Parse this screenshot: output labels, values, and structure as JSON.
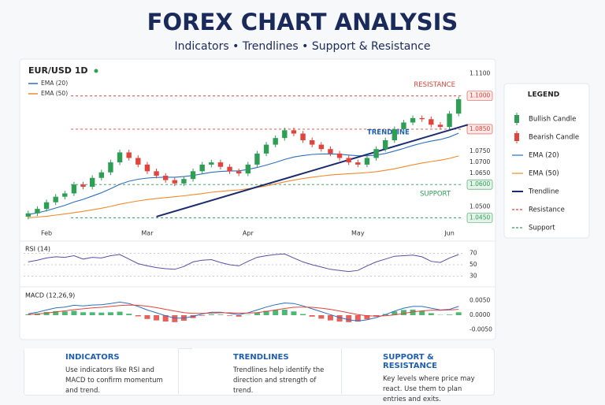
{
  "header": {
    "title": "FOREX CHART ANALYSIS",
    "subtitle": "Indicators • Trendlines • Support & Resistance"
  },
  "chart_data": [
    {
      "type": "candlestick",
      "title": "EUR/USD  1D",
      "candles": {
        "up_name": "Bullish Candle",
        "down_name": "Bearish Candle",
        "up_color": "#2e9e55",
        "down_color": "#e0443c",
        "open": [
          1.0455,
          1.047,
          1.049,
          1.052,
          1.0545,
          1.056,
          1.06,
          1.059,
          1.063,
          1.0655,
          1.07,
          1.0745,
          1.072,
          1.069,
          1.066,
          1.064,
          1.062,
          1.0605,
          1.0625,
          1.066,
          1.069,
          1.07,
          1.068,
          1.066,
          1.065,
          1.069,
          1.074,
          1.078,
          1.081,
          1.0845,
          1.083,
          1.08,
          1.078,
          1.076,
          1.074,
          1.072,
          1.07,
          1.069,
          1.072,
          1.076,
          1.08,
          1.085,
          1.088,
          1.09,
          1.0895,
          1.087,
          1.086,
          1.092
        ],
        "high": [
          1.0482,
          1.0502,
          1.0532,
          1.0557,
          1.0572,
          1.0612,
          1.0612,
          1.0642,
          1.0667,
          1.0712,
          1.0757,
          1.0757,
          1.0732,
          1.0702,
          1.0672,
          1.0652,
          1.0632,
          1.0637,
          1.0672,
          1.0702,
          1.0712,
          1.0712,
          1.0692,
          1.0672,
          1.0702,
          1.0752,
          1.0792,
          1.0822,
          1.0857,
          1.0857,
          1.0842,
          1.0812,
          1.0792,
          1.0772,
          1.0752,
          1.0732,
          1.0712,
          1.0732,
          1.0772,
          1.0812,
          1.0862,
          1.0892,
          1.0912,
          1.0912,
          1.0907,
          1.0882,
          1.0932,
          1.0997
        ],
        "low": [
          1.0443,
          1.0458,
          1.0478,
          1.0508,
          1.0533,
          1.0548,
          1.0578,
          1.0578,
          1.0618,
          1.0643,
          1.0688,
          1.0708,
          1.0678,
          1.0648,
          1.0628,
          1.0608,
          1.0593,
          1.0593,
          1.0613,
          1.0648,
          1.0678,
          1.0668,
          1.0648,
          1.0638,
          1.0638,
          1.0678,
          1.0728,
          1.0768,
          1.0798,
          1.0818,
          1.0788,
          1.0768,
          1.0748,
          1.0728,
          1.0708,
          1.0688,
          1.0678,
          1.0678,
          1.0708,
          1.0748,
          1.0788,
          1.0838,
          1.0868,
          1.0883,
          1.0858,
          1.0848,
          1.0848,
          1.0908
        ],
        "close": [
          1.047,
          1.049,
          1.052,
          1.0545,
          1.056,
          1.06,
          1.059,
          1.063,
          1.0655,
          1.07,
          1.0745,
          1.072,
          1.069,
          1.066,
          1.064,
          1.062,
          1.0605,
          1.0625,
          1.066,
          1.069,
          1.07,
          1.068,
          1.066,
          1.065,
          1.069,
          1.074,
          1.078,
          1.081,
          1.0845,
          1.083,
          1.08,
          1.078,
          1.076,
          1.074,
          1.072,
          1.07,
          1.069,
          1.072,
          1.076,
          1.08,
          1.085,
          1.088,
          1.09,
          1.0895,
          1.087,
          1.086,
          1.092,
          1.0985
        ]
      },
      "series": [
        {
          "name": "EMA (20)",
          "color": "#2c6fbb",
          "values": [
            1.0465,
            1.0472,
            1.0482,
            1.0494,
            1.0506,
            1.0521,
            1.0533,
            1.0548,
            1.0563,
            1.0581,
            1.0601,
            1.0615,
            1.0624,
            1.0629,
            1.0632,
            1.0633,
            1.0633,
            1.0636,
            1.0641,
            1.0648,
            1.0655,
            1.0659,
            1.0661,
            1.0662,
            1.0668,
            1.0677,
            1.0688,
            1.07,
            1.0713,
            1.0724,
            1.0731,
            1.0736,
            1.0738,
            1.0738,
            1.0737,
            1.0733,
            1.073,
            1.073,
            1.0733,
            1.074,
            1.0751,
            1.0763,
            1.0776,
            1.0787,
            1.0796,
            1.0803,
            1.0815,
            1.0832
          ]
        },
        {
          "name": "EMA (50)",
          "color": "#f08a2c",
          "values": [
            1.045,
            1.0453,
            1.0457,
            1.0462,
            1.0467,
            1.0473,
            1.0479,
            1.0486,
            1.0493,
            1.0501,
            1.0511,
            1.0519,
            1.0526,
            1.0532,
            1.0537,
            1.0541,
            1.0545,
            1.0549,
            1.0554,
            1.0559,
            1.0565,
            1.0569,
            1.0573,
            1.0576,
            1.0581,
            1.0587,
            1.0594,
            1.0603,
            1.0612,
            1.062,
            1.0627,
            1.0633,
            1.0638,
            1.0643,
            1.0646,
            1.0649,
            1.0651,
            1.0654,
            1.0658,
            1.0664,
            1.0671,
            1.068,
            1.0689,
            1.0697,
            1.0704,
            1.071,
            1.0718,
            1.0729
          ]
        }
      ],
      "trendline": {
        "name": "Trendline",
        "label": "TRENDLINE",
        "color": "#1a2a6e",
        "x": [
          14,
          48
        ],
        "y": [
          1.0455,
          1.087
        ]
      },
      "resistance": {
        "name": "Resistance",
        "label": "RESISTANCE",
        "color": "#e0443c",
        "levels": [
          1.1,
          1.085
        ]
      },
      "support": {
        "name": "Support",
        "label": "SUPPORT",
        "color": "#2e9e55",
        "levels": [
          1.06,
          1.045
        ]
      },
      "ylim": [
        1.043,
        1.112
      ],
      "yticks": [
        {
          "value": 1.11,
          "label": "1.1100"
        },
        {
          "value": 1.1,
          "label": "1.1000"
        },
        {
          "value": 1.085,
          "label": "1.0850"
        },
        {
          "value": 1.075,
          "label": "1.0750"
        },
        {
          "value": 1.07,
          "label": "1.0700"
        },
        {
          "value": 1.065,
          "label": "1.0650"
        },
        {
          "value": 1.06,
          "label": "1.0600"
        },
        {
          "value": 1.05,
          "label": "1.0500"
        },
        {
          "value": 1.045,
          "label": "1.0450"
        }
      ],
      "xticks": [
        {
          "value": 2,
          "label": "Feb"
        },
        {
          "value": 13,
          "label": "Mar"
        },
        {
          "value": 24,
          "label": "Apr"
        },
        {
          "value": 36,
          "label": "May"
        },
        {
          "value": 46,
          "label": "Jun"
        }
      ],
      "legend_title": "LEGEND"
    },
    {
      "type": "line",
      "title": "RSI (14)",
      "color": "#5a4fa3",
      "ylim": [
        25,
        75
      ],
      "yticks": [
        70,
        50,
        30
      ],
      "grid": true,
      "values": [
        55,
        58,
        62,
        64,
        63,
        66,
        60,
        63,
        62,
        66,
        68,
        60,
        52,
        48,
        45,
        43,
        42,
        47,
        55,
        58,
        59,
        54,
        50,
        48,
        56,
        63,
        66,
        68,
        69,
        62,
        55,
        50,
        46,
        42,
        40,
        38,
        40,
        48,
        55,
        60,
        65,
        66,
        67,
        64,
        56,
        54,
        62,
        68
      ]
    },
    {
      "type": "macd",
      "title": "MACD (12,26,9)",
      "ylim": [
        -0.0065,
        0.0065
      ],
      "yticks": [
        {
          "value": 0.005,
          "label": "0.0050"
        },
        {
          "value": 0,
          "label": "0.0000"
        },
        {
          "value": -0.005,
          "label": "-0.0050"
        }
      ],
      "series": [
        {
          "color": "#2c6fbb",
          "values": [
            0.0005,
            0.001,
            0.0018,
            0.0025,
            0.0028,
            0.0034,
            0.0032,
            0.0035,
            0.0036,
            0.004,
            0.0045,
            0.004,
            0.003,
            0.0018,
            0.0008,
            -0.0002,
            -0.001,
            -0.001,
            -0.0004,
            0.0004,
            0.001,
            0.001,
            0.0006,
            0.0002,
            0.0008,
            0.0018,
            0.0028,
            0.0036,
            0.0042,
            0.004,
            0.0032,
            0.0022,
            0.0012,
            0.0002,
            -0.0008,
            -0.0016,
            -0.002,
            -0.0016,
            -0.0008,
            0.0002,
            0.0014,
            0.0024,
            0.003,
            0.003,
            0.0024,
            0.0018,
            0.002,
            0.003
          ]
        },
        {
          "color": "#e0443c",
          "values": [
            0.0002,
            0.0004,
            0.0007,
            0.0011,
            0.0015,
            0.0019,
            0.0022,
            0.0025,
            0.0027,
            0.003,
            0.0033,
            0.0035,
            0.0034,
            0.0031,
            0.0026,
            0.002,
            0.0014,
            0.0009,
            0.0006,
            0.0006,
            0.0007,
            0.0008,
            0.0008,
            0.0007,
            0.0007,
            0.0009,
            0.0013,
            0.0018,
            0.0023,
            0.0027,
            0.0028,
            0.0027,
            0.0024,
            0.002,
            0.0014,
            0.0008,
            0.0002,
            -0.0002,
            -0.0003,
            -0.0002,
            0.0001,
            0.0006,
            0.0011,
            0.0015,
            0.0017,
            0.0017,
            0.0018,
            0.002
          ]
        }
      ],
      "histogram": {
        "up_color": "#4cb873",
        "down_color": "#e8605a",
        "values": [
          0.0003,
          0.0006,
          0.0011,
          0.0014,
          0.0013,
          0.0015,
          0.001,
          0.001,
          0.0009,
          0.001,
          0.0012,
          0.0005,
          -0.0004,
          -0.0013,
          -0.0018,
          -0.0022,
          -0.0024,
          -0.0019,
          -0.001,
          -0.0002,
          0.0003,
          0.0002,
          -0.0002,
          -0.0005,
          0.0001,
          0.0009,
          0.0015,
          0.0018,
          0.0019,
          0.0013,
          0.0004,
          -0.0005,
          -0.0012,
          -0.0018,
          -0.0022,
          -0.0024,
          -0.0022,
          -0.0014,
          -0.0005,
          0.0004,
          0.0013,
          0.0018,
          0.0019,
          0.0015,
          0.0007,
          0.0001,
          0.0002,
          0.001
        ]
      }
    }
  ],
  "cards": [
    {
      "title": "INDICATORS",
      "text": "Use indicators like RSI and MACD to confirm momentum and trend."
    },
    {
      "title": "TRENDLINES",
      "text": "Trendlines help identify the direction and strength of trend."
    },
    {
      "title": "SUPPORT & RESISTANCE",
      "text": "Key levels where price may react. Use them to plan entries and exits."
    }
  ]
}
